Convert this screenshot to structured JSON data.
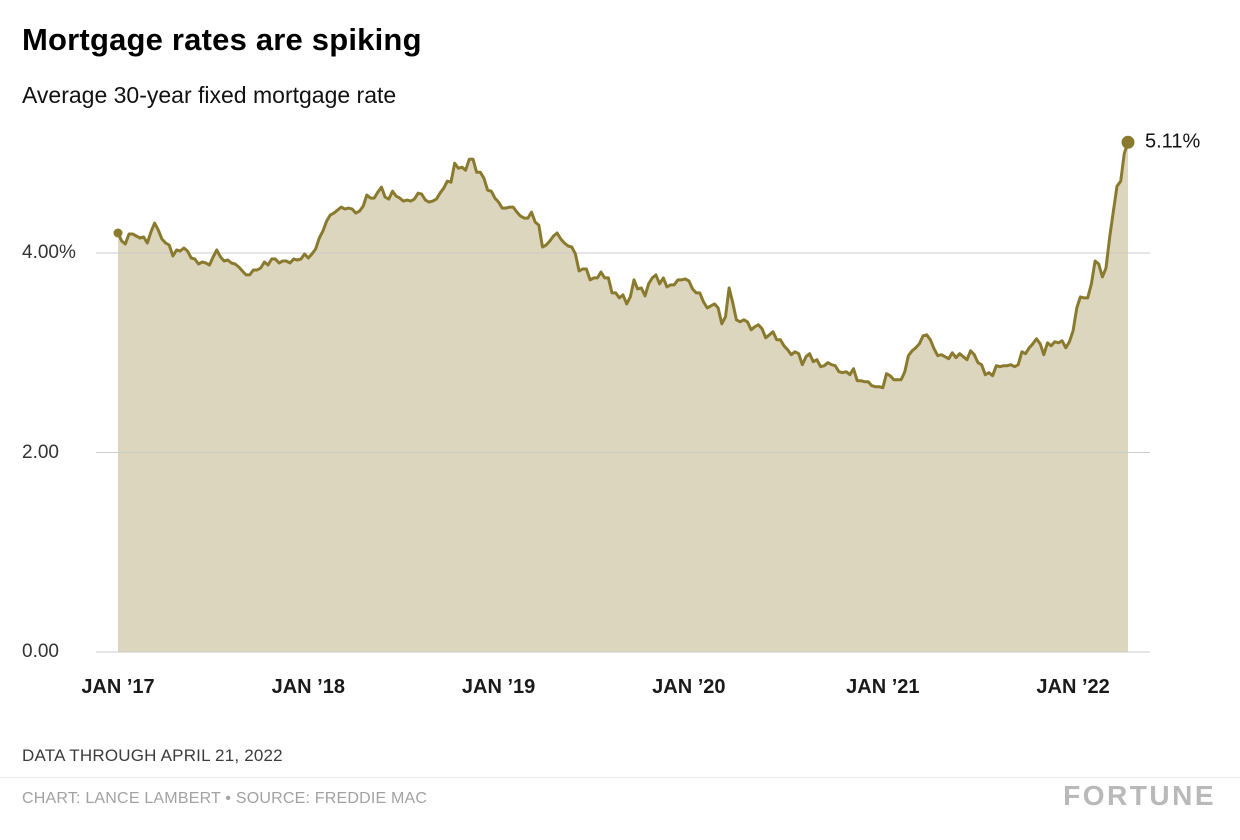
{
  "header": {
    "title": "Mortgage rates are spiking",
    "subtitle": "Average 30-year fixed mortgage rate"
  },
  "footer": {
    "note": "DATA THROUGH APRIL 21, 2022",
    "credit": "CHART: LANCE LAMBERT • SOURCE: FREDDIE MAC",
    "brand": "FORTUNE"
  },
  "chart_data": {
    "type": "area",
    "title": "Mortgage rates are spiking",
    "subtitle": "Average 30-year fixed mortgage rate",
    "series_name": "Average 30-year fixed mortgage rate",
    "unit": "%",
    "frequency": "weekly",
    "x_range": [
      "JAN ’17",
      "APRIL 21, 2022"
    ],
    "ylim": [
      0,
      5.4
    ],
    "grid": "horizontal",
    "legend": "none",
    "colors": {
      "line": "#8a7a2e",
      "fill": "#ddd6bf",
      "grid": "#c9c9c9",
      "marker": "#8a7a2e"
    },
    "y_ticks": [
      {
        "value": 4,
        "label": "4.00%"
      },
      {
        "value": 2,
        "label": "2.00"
      },
      {
        "value": 0,
        "label": "0.00"
      }
    ],
    "x_ticks": [
      {
        "index": 0,
        "label": "JAN ’17"
      },
      {
        "index": 52,
        "label": "JAN ’18"
      },
      {
        "index": 104,
        "label": "JAN ’19"
      },
      {
        "index": 156,
        "label": "JAN ’20"
      },
      {
        "index": 209,
        "label": "JAN ’21"
      },
      {
        "index": 261,
        "label": "JAN ’22"
      }
    ],
    "start_value": 4.2,
    "end_value": 5.11,
    "end_label": "5.11%",
    "values": [
      4.2,
      4.12,
      4.09,
      4.19,
      4.19,
      4.17,
      4.15,
      4.16,
      4.1,
      4.21,
      4.3,
      4.23,
      4.14,
      4.1,
      4.08,
      3.97,
      4.03,
      4.02,
      4.05,
      4.02,
      3.95,
      3.94,
      3.89,
      3.91,
      3.9,
      3.88,
      3.96,
      4.03,
      3.96,
      3.92,
      3.93,
      3.9,
      3.89,
      3.86,
      3.82,
      3.78,
      3.78,
      3.83,
      3.83,
      3.85,
      3.91,
      3.88,
      3.94,
      3.94,
      3.9,
      3.92,
      3.92,
      3.9,
      3.94,
      3.93,
      3.94,
      3.99,
      3.95,
      3.99,
      4.04,
      4.15,
      4.22,
      4.32,
      4.38,
      4.4,
      4.43,
      4.46,
      4.44,
      4.45,
      4.44,
      4.4,
      4.42,
      4.47,
      4.58,
      4.55,
      4.55,
      4.61,
      4.66,
      4.56,
      4.54,
      4.62,
      4.57,
      4.55,
      4.52,
      4.53,
      4.52,
      4.54,
      4.6,
      4.59,
      4.53,
      4.51,
      4.52,
      4.54,
      4.6,
      4.65,
      4.72,
      4.71,
      4.9,
      4.85,
      4.86,
      4.83,
      4.94,
      4.94,
      4.81,
      4.81,
      4.75,
      4.63,
      4.62,
      4.55,
      4.51,
      4.45,
      4.45,
      4.46,
      4.46,
      4.41,
      4.37,
      4.35,
      4.35,
      4.41,
      4.31,
      4.28,
      4.06,
      4.08,
      4.12,
      4.17,
      4.2,
      4.14,
      4.1,
      4.07,
      4.06,
      3.99,
      3.82,
      3.84,
      3.84,
      3.73,
      3.75,
      3.75,
      3.81,
      3.75,
      3.75,
      3.6,
      3.6,
      3.55,
      3.58,
      3.49,
      3.56,
      3.73,
      3.64,
      3.65,
      3.57,
      3.69,
      3.75,
      3.78,
      3.69,
      3.75,
      3.66,
      3.68,
      3.68,
      3.73,
      3.73,
      3.74,
      3.72,
      3.64,
      3.6,
      3.6,
      3.51,
      3.45,
      3.47,
      3.49,
      3.45,
      3.29,
      3.36,
      3.65,
      3.5,
      3.33,
      3.31,
      3.33,
      3.31,
      3.23,
      3.26,
      3.28,
      3.24,
      3.15,
      3.18,
      3.21,
      3.13,
      3.13,
      3.07,
      3.03,
      2.98,
      3.01,
      2.99,
      2.88,
      2.96,
      2.99,
      2.91,
      2.93,
      2.86,
      2.87,
      2.9,
      2.88,
      2.87,
      2.81,
      2.8,
      2.81,
      2.78,
      2.84,
      2.72,
      2.72,
      2.71,
      2.71,
      2.67,
      2.66,
      2.66,
      2.65,
      2.79,
      2.77,
      2.73,
      2.73,
      2.73,
      2.81,
      2.97,
      3.02,
      3.05,
      3.09,
      3.17,
      3.18,
      3.13,
      3.04,
      2.97,
      2.98,
      2.96,
      2.94,
      3.0,
      2.95,
      2.99,
      2.96,
      2.93,
      3.02,
      2.98,
      2.9,
      2.88,
      2.78,
      2.8,
      2.77,
      2.87,
      2.86,
      2.87,
      2.87,
      2.88,
      2.86,
      2.88,
      3.01,
      2.99,
      3.05,
      3.09,
      3.14,
      3.09,
      2.98,
      3.1,
      3.07,
      3.11,
      3.1,
      3.12,
      3.05,
      3.11,
      3.22,
      3.45,
      3.56,
      3.55,
      3.55,
      3.69,
      3.92,
      3.89,
      3.76,
      3.85,
      4.16,
      4.42,
      4.67,
      4.72,
      5.0,
      5.11
    ]
  }
}
